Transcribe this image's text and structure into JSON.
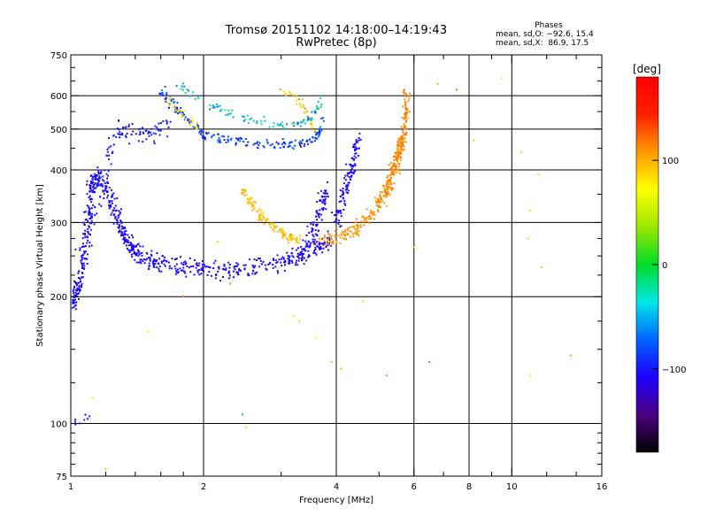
{
  "header": {
    "title": "Tromsø 20151102 14:18:00–14:19:43",
    "subtitle": "RwPretec (8p)",
    "stats_heading": "Phases",
    "stats_o": "mean, sd,O: −92.6, 15.4",
    "stats_x": "mean, sd,X:  86.9, 17.5"
  },
  "chart_data": {
    "type": "scatter",
    "xlabel": "Frequency [MHz]",
    "ylabel": "Stationary phase Virtual Height [km]",
    "xscale": "log",
    "yscale": "log",
    "xlim": [
      1,
      16
    ],
    "ylim": [
      75,
      750
    ],
    "xticks_major": [
      1,
      2,
      4,
      6,
      8,
      10,
      16
    ],
    "xticks_major_labels": [
      "1",
      "2",
      "4",
      "6",
      "8",
      "10",
      "16"
    ],
    "xticks_minor": [
      1.2,
      1.4,
      1.6,
      1.8,
      3,
      5,
      7,
      9,
      12,
      14
    ],
    "yticks_major": [
      75,
      100,
      200,
      300,
      400,
      500,
      600,
      750
    ],
    "yticks_major_labels": [
      "75",
      "100",
      "200",
      "300",
      "400",
      "500",
      "600",
      "750"
    ],
    "yticks_minor": [
      80,
      85,
      90,
      95,
      125,
      150,
      175,
      225,
      250,
      275,
      350,
      450,
      550,
      650,
      700
    ],
    "grid_x": [
      2,
      4,
      6,
      8,
      10
    ],
    "grid_y": [
      100,
      200,
      300,
      400,
      500,
      600
    ],
    "colorbar": {
      "label": "[deg]",
      "range": [
        -180,
        180
      ],
      "ticks": [
        100,
        0,
        -100
      ],
      "tick_labels": [
        "100",
        "0",
        "−100"
      ],
      "colormap": "rainbow",
      "stops": [
        "#000000",
        "#4b0082",
        "#1e00ff",
        "#0064ff",
        "#00e6e6",
        "#00dc28",
        "#9be600",
        "#ffff00",
        "#ff9a00",
        "#ff2000",
        "#ff0000"
      ]
    },
    "series": [
      {
        "kind": "band",
        "comment_free": true,
        "points": [
          [
            1.0,
            190
          ],
          [
            1.02,
            200
          ],
          [
            1.05,
            215
          ],
          [
            1.08,
            260
          ],
          [
            1.1,
            320
          ],
          [
            1.12,
            370
          ],
          [
            1.15,
            390
          ],
          [
            1.2,
            360
          ],
          [
            1.25,
            320
          ],
          [
            1.3,
            290
          ],
          [
            1.35,
            270
          ],
          [
            1.4,
            255
          ],
          [
            1.5,
            245
          ],
          [
            1.6,
            240
          ],
          [
            1.8,
            235
          ],
          [
            2.0,
            232
          ],
          [
            2.3,
            232
          ],
          [
            2.6,
            235
          ],
          [
            3.0,
            242
          ],
          [
            3.3,
            250
          ],
          [
            3.6,
            260
          ],
          [
            3.9,
            272
          ]
        ],
        "spread": 0.06,
        "density": 34,
        "phase": -105,
        "phase_sd": 12
      },
      {
        "kind": "band",
        "points": [
          [
            1.05,
            240
          ],
          [
            1.1,
            290
          ],
          [
            1.15,
            330
          ],
          [
            1.2,
            400
          ],
          [
            1.25,
            470
          ],
          [
            1.3,
            500
          ],
          [
            1.4,
            490
          ],
          [
            1.5,
            480
          ],
          [
            1.6,
            500
          ],
          [
            1.7,
            540
          ]
        ],
        "spread": 0.07,
        "density": 14,
        "phase": -100,
        "phase_sd": 14
      },
      {
        "kind": "band",
        "points": [
          [
            1.6,
            620
          ],
          [
            1.7,
            580
          ],
          [
            1.85,
            520
          ],
          [
            2.0,
            485
          ],
          [
            2.3,
            470
          ],
          [
            2.6,
            462
          ],
          [
            3.0,
            458
          ],
          [
            3.3,
            462
          ],
          [
            3.6,
            478
          ],
          [
            3.75,
            520
          ]
        ],
        "spread": 0.035,
        "density": 22,
        "phase": -85,
        "phase_sd": 30
      },
      {
        "kind": "band",
        "points": [
          [
            1.75,
            640
          ],
          [
            1.9,
            600
          ],
          [
            2.2,
            555
          ],
          [
            2.5,
            530
          ],
          [
            2.8,
            515
          ],
          [
            3.1,
            510
          ],
          [
            3.4,
            520
          ],
          [
            3.6,
            545
          ],
          [
            3.7,
            590
          ]
        ],
        "spread": 0.03,
        "density": 12,
        "phase": -40,
        "phase_sd": 60
      },
      {
        "kind": "band",
        "points": [
          [
            1.65,
            590
          ],
          [
            1.75,
            555
          ],
          [
            1.85,
            525
          ],
          [
            1.95,
            500
          ]
        ],
        "spread": 0.03,
        "density": 10,
        "phase": 80,
        "phase_sd": 30
      },
      {
        "kind": "band",
        "points": [
          [
            3.0,
            620
          ],
          [
            3.2,
            600
          ],
          [
            3.35,
            570
          ],
          [
            3.5,
            520
          ],
          [
            3.6,
            490
          ]
        ],
        "spread": 0.03,
        "density": 8,
        "phase": 90,
        "phase_sd": 30
      },
      {
        "kind": "band",
        "points": [
          [
            2.45,
            360
          ],
          [
            2.55,
            335
          ],
          [
            2.7,
            310
          ],
          [
            2.9,
            290
          ],
          [
            3.1,
            278
          ],
          [
            3.3,
            270
          ]
        ],
        "spread": 0.03,
        "density": 24,
        "phase": 95,
        "phase_sd": 14
      },
      {
        "kind": "band",
        "points": [
          [
            3.3,
            250
          ],
          [
            3.5,
            270
          ],
          [
            3.6,
            300
          ],
          [
            3.7,
            330
          ],
          [
            3.8,
            355
          ]
        ],
        "spread": 0.06,
        "density": 24,
        "phase": -105,
        "phase_sd": 12
      },
      {
        "kind": "band",
        "points": [
          [
            4.0,
            300
          ],
          [
            4.1,
            330
          ],
          [
            4.2,
            360
          ],
          [
            4.3,
            400
          ],
          [
            4.4,
            440
          ],
          [
            4.5,
            480
          ]
        ],
        "spread": 0.06,
        "density": 22,
        "phase": -105,
        "phase_sd": 12
      },
      {
        "kind": "band",
        "points": [
          [
            3.7,
            270
          ],
          [
            4.0,
            275
          ],
          [
            4.3,
            285
          ],
          [
            4.6,
            300
          ],
          [
            4.9,
            320
          ],
          [
            5.2,
            350
          ],
          [
            5.4,
            390
          ],
          [
            5.55,
            440
          ],
          [
            5.65,
            480
          ]
        ],
        "spread": 0.05,
        "density": 26,
        "phase": 110,
        "phase_sd": 14
      },
      {
        "kind": "band",
        "points": [
          [
            5.0,
            330
          ],
          [
            5.2,
            360
          ],
          [
            5.35,
            400
          ],
          [
            5.5,
            430
          ],
          [
            5.6,
            460
          ],
          [
            5.7,
            500
          ],
          [
            5.75,
            560
          ],
          [
            5.8,
            620
          ]
        ],
        "spread": 0.05,
        "density": 24,
        "phase": 115,
        "phase_sd": 12
      },
      {
        "kind": "band",
        "points": [
          [
            1.02,
            100
          ],
          [
            1.06,
            105
          ],
          [
            1.1,
            102
          ]
        ],
        "spread": 0.03,
        "density": 4,
        "phase": -100,
        "phase_sd": 10
      },
      {
        "kind": "scatter",
        "points": [
          [
            1.12,
            115
          ],
          [
            1.2,
            78
          ],
          [
            1.5,
            165
          ],
          [
            1.8,
            200
          ],
          [
            2.15,
            270
          ],
          [
            2.3,
            215
          ],
          [
            2.45,
            105
          ],
          [
            2.5,
            98
          ],
          [
            3.2,
            180
          ],
          [
            3.3,
            175
          ],
          [
            3.6,
            160
          ],
          [
            3.9,
            140
          ],
          [
            4.1,
            135
          ],
          [
            4.6,
            195
          ],
          [
            5.2,
            130
          ],
          [
            6.0,
            262
          ],
          [
            6.5,
            140
          ],
          [
            7.5,
            620
          ],
          [
            8.2,
            470
          ],
          [
            10.5,
            440
          ],
          [
            10.9,
            275
          ],
          [
            11.0,
            130
          ],
          [
            11.7,
            235
          ],
          [
            11.0,
            320
          ],
          [
            11.5,
            390
          ],
          [
            13.6,
            145
          ],
          [
            9.5,
            660
          ],
          [
            6.8,
            640
          ]
        ],
        "phase": 60,
        "phase_sd": 90
      }
    ]
  }
}
